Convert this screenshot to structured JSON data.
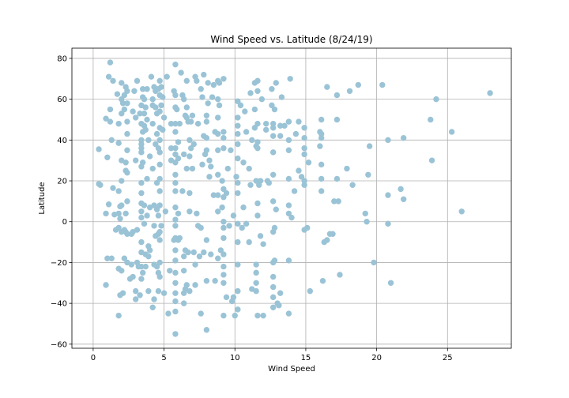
{
  "chart_data": {
    "type": "scatter",
    "title": "Wind Speed vs. Latitude (8/24/19)",
    "xlabel": "Wind Speed",
    "ylabel": "Latitude",
    "xlim": [
      -1.5,
      29.5
    ],
    "ylim": [
      -62,
      85
    ],
    "xticks": [
      0,
      5,
      10,
      15,
      20,
      25
    ],
    "yticks": [
      -60,
      -40,
      -20,
      0,
      20,
      40,
      60,
      80
    ],
    "grid": true,
    "point_color": "#9ac3d6",
    "points": [
      [
        0.4,
        35.5
      ],
      [
        0.4,
        18.5
      ],
      [
        0.5,
        18
      ],
      [
        0.9,
        50.5
      ],
      [
        0.9,
        4
      ],
      [
        0.9,
        -31
      ],
      [
        1,
        -18
      ],
      [
        1,
        31.5
      ],
      [
        1.1,
        71
      ],
      [
        1.1,
        8.5
      ],
      [
        1.2,
        78
      ],
      [
        1.2,
        55
      ],
      [
        1.2,
        49
      ],
      [
        1.3,
        -18
      ],
      [
        1.3,
        40
      ],
      [
        1.4,
        69
      ],
      [
        1.4,
        16.5
      ],
      [
        1.5,
        3.5
      ],
      [
        1.6,
        -4
      ],
      [
        1.7,
        62.5
      ],
      [
        1.8,
        48
      ],
      [
        1.8,
        38.5
      ],
      [
        1.8,
        15
      ],
      [
        1.8,
        4
      ],
      [
        1.8,
        -3
      ],
      [
        1.8,
        -23
      ],
      [
        1.8,
        -46
      ],
      [
        1.9,
        7.5
      ],
      [
        1.9,
        1.5
      ],
      [
        1.9,
        -36
      ],
      [
        2,
        68
      ],
      [
        2,
        60
      ],
      [
        2,
        53
      ],
      [
        2,
        30
      ],
      [
        2,
        20
      ],
      [
        2,
        8
      ],
      [
        2,
        -5
      ],
      [
        2,
        -24
      ],
      [
        2.1,
        58
      ],
      [
        2.1,
        -35
      ],
      [
        2.2,
        62
      ],
      [
        2.2,
        55
      ],
      [
        2.2,
        -4
      ],
      [
        2.2,
        -18
      ],
      [
        2.3,
        66
      ],
      [
        2.3,
        29
      ],
      [
        2.3,
        25
      ],
      [
        2.3,
        4
      ],
      [
        2.3,
        -5
      ],
      [
        2.4,
        64
      ],
      [
        2.4,
        58
      ],
      [
        2.4,
        49
      ],
      [
        2.4,
        43
      ],
      [
        2.4,
        35
      ],
      [
        2.4,
        24
      ],
      [
        2.4,
        10
      ],
      [
        2.4,
        -6
      ],
      [
        2.4,
        -20
      ],
      [
        2.6,
        -28
      ],
      [
        2.7,
        -6
      ],
      [
        2.7,
        -21
      ],
      [
        2.8,
        54
      ],
      [
        2.8,
        -27
      ],
      [
        2.8,
        -5
      ],
      [
        2.9,
        64
      ],
      [
        3,
        30
      ],
      [
        3,
        51
      ],
      [
        3,
        -34
      ],
      [
        3,
        -38
      ],
      [
        3.1,
        -4
      ],
      [
        3.1,
        -20
      ],
      [
        3.1,
        69
      ],
      [
        3.2,
        -22
      ],
      [
        3.3,
        53
      ],
      [
        3.3,
        -36
      ],
      [
        3.4,
        57
      ],
      [
        3.4,
        48
      ],
      [
        3.4,
        40
      ],
      [
        3.4,
        38
      ],
      [
        3.4,
        36
      ],
      [
        3.4,
        34
      ],
      [
        3.4,
        27
      ],
      [
        3.4,
        19
      ],
      [
        3.4,
        14
      ],
      [
        3.4,
        9
      ],
      [
        3.4,
        5
      ],
      [
        3.4,
        2
      ],
      [
        3.4,
        -10
      ],
      [
        3.4,
        -15
      ],
      [
        3.4,
        -22
      ],
      [
        3.4,
        -28
      ],
      [
        3.5,
        65
      ],
      [
        3.5,
        61
      ],
      [
        3.5,
        44
      ],
      [
        3.5,
        29
      ],
      [
        3.5,
        -25
      ],
      [
        3.6,
        60
      ],
      [
        3.6,
        53
      ],
      [
        3.6,
        47
      ],
      [
        3.6,
        8
      ],
      [
        3.6,
        -1
      ],
      [
        3.7,
        56
      ],
      [
        3.7,
        45
      ],
      [
        3.7,
        -16
      ],
      [
        3.7,
        -22
      ],
      [
        3.8,
        65
      ],
      [
        3.8,
        50
      ],
      [
        3.8,
        21
      ],
      [
        3.8,
        3
      ],
      [
        3.9,
        40
      ],
      [
        3.9,
        -17
      ],
      [
        3.9,
        -12
      ],
      [
        3.9,
        -34
      ],
      [
        4,
        32
      ],
      [
        4,
        7
      ],
      [
        4,
        -14
      ],
      [
        4.1,
        71
      ],
      [
        4.2,
        60
      ],
      [
        4.2,
        57
      ],
      [
        4.2,
        48
      ],
      [
        4.2,
        26
      ],
      [
        4.2,
        -42
      ],
      [
        4.3,
        66
      ],
      [
        4.3,
        -38
      ],
      [
        4.3,
        -21
      ],
      [
        4.3,
        -2
      ],
      [
        4.3,
        8
      ],
      [
        4.4,
        64
      ],
      [
        4.4,
        56
      ],
      [
        4.4,
        38
      ],
      [
        4.4,
        -7
      ],
      [
        4.5,
        53
      ],
      [
        4.5,
        43
      ],
      [
        4.5,
        19
      ],
      [
        4.5,
        6
      ],
      [
        4.5,
        -22
      ],
      [
        4.6,
        65
      ],
      [
        4.6,
        36
      ],
      [
        4.6,
        3
      ],
      [
        4.6,
        -6
      ],
      [
        4.6,
        -25
      ],
      [
        4.6,
        -34
      ],
      [
        4.7,
        69
      ],
      [
        4.7,
        62
      ],
      [
        4.7,
        54
      ],
      [
        4.7,
        46
      ],
      [
        4.7,
        40
      ],
      [
        4.7,
        34
      ],
      [
        4.7,
        28
      ],
      [
        4.7,
        21
      ],
      [
        4.7,
        15
      ],
      [
        4.7,
        8
      ],
      [
        4.7,
        -5
      ],
      [
        4.7,
        -9
      ],
      [
        4.7,
        -20
      ],
      [
        4.7,
        -27
      ],
      [
        4.8,
        66
      ],
      [
        4.8,
        57
      ],
      [
        4.8,
        -2
      ],
      [
        4.9,
        45
      ],
      [
        4.9,
        61
      ],
      [
        5,
        51
      ],
      [
        5,
        -35
      ],
      [
        5.1,
        5
      ],
      [
        5.2,
        71
      ],
      [
        5.3,
        -45
      ],
      [
        5.4,
        -24
      ],
      [
        5.5,
        36
      ],
      [
        5.5,
        48
      ],
      [
        5.5,
        30
      ],
      [
        5.7,
        64
      ],
      [
        5.7,
        -9
      ],
      [
        5.8,
        77
      ],
      [
        5.8,
        62
      ],
      [
        5.8,
        56
      ],
      [
        5.8,
        48
      ],
      [
        5.8,
        44
      ],
      [
        5.8,
        36
      ],
      [
        5.8,
        33
      ],
      [
        5.8,
        29
      ],
      [
        5.8,
        23
      ],
      [
        5.8,
        19
      ],
      [
        5.8,
        15
      ],
      [
        5.8,
        7
      ],
      [
        5.8,
        1
      ],
      [
        5.8,
        -2
      ],
      [
        5.8,
        -8
      ],
      [
        5.8,
        -14
      ],
      [
        5.8,
        -19
      ],
      [
        5.8,
        -25
      ],
      [
        5.8,
        -30
      ],
      [
        5.8,
        -35
      ],
      [
        5.8,
        -39
      ],
      [
        5.8,
        -44
      ],
      [
        5.8,
        -55
      ],
      [
        5.9,
        55
      ],
      [
        6,
        39
      ],
      [
        6,
        31
      ],
      [
        6,
        4
      ],
      [
        6,
        -9
      ],
      [
        6.1,
        48
      ],
      [
        6.1,
        -8
      ],
      [
        6.2,
        73
      ],
      [
        6.3,
        62
      ],
      [
        6.3,
        15
      ],
      [
        6.4,
        60
      ],
      [
        6.4,
        33
      ],
      [
        6.4,
        -17
      ],
      [
        6.4,
        -24
      ],
      [
        6.4,
        -35
      ],
      [
        6.4,
        -40
      ],
      [
        6.5,
        52
      ],
      [
        6.5,
        -14
      ],
      [
        6.5,
        -33
      ],
      [
        6.6,
        69
      ],
      [
        6.6,
        56
      ],
      [
        6.6,
        51
      ],
      [
        6.6,
        26
      ],
      [
        6.6,
        -31
      ],
      [
        6.7,
        49
      ],
      [
        6.7,
        -15
      ],
      [
        6.8,
        40
      ],
      [
        6.8,
        32
      ],
      [
        6.8,
        14
      ],
      [
        6.8,
        5
      ],
      [
        6.8,
        -34
      ],
      [
        6.9,
        49
      ],
      [
        6.9,
        36
      ],
      [
        7,
        52
      ],
      [
        7,
        26
      ],
      [
        7.1,
        38
      ],
      [
        7.1,
        -15
      ],
      [
        7.2,
        71
      ],
      [
        7.2,
        -21
      ],
      [
        7.2,
        -31
      ],
      [
        7.3,
        69
      ],
      [
        7.3,
        4
      ],
      [
        7.4,
        48
      ],
      [
        7.4,
        -2
      ],
      [
        7.5,
        -17
      ],
      [
        7.6,
        65
      ],
      [
        7.6,
        -3
      ],
      [
        7.6,
        -45
      ],
      [
        7.7,
        61
      ],
      [
        7.7,
        28
      ],
      [
        7.8,
        72
      ],
      [
        7.8,
        42
      ],
      [
        7.8,
        -15
      ],
      [
        7.9,
        33
      ],
      [
        8,
        52
      ],
      [
        8,
        49
      ],
      [
        8,
        41
      ],
      [
        8,
        35
      ],
      [
        8,
        -9
      ],
      [
        8,
        -29
      ],
      [
        8,
        -53
      ],
      [
        8.1,
        68
      ],
      [
        8.1,
        58
      ],
      [
        8.2,
        30
      ],
      [
        8.2,
        22
      ],
      [
        8.3,
        27
      ],
      [
        8.3,
        -16
      ],
      [
        8.4,
        61
      ],
      [
        8.5,
        67
      ],
      [
        8.5,
        13
      ],
      [
        8.6,
        44
      ],
      [
        8.6,
        -29
      ],
      [
        8.8,
        69
      ],
      [
        8.8,
        60
      ],
      [
        8.8,
        51
      ],
      [
        8.8,
        43
      ],
      [
        8.8,
        35
      ],
      [
        8.8,
        23
      ],
      [
        8.8,
        13
      ],
      [
        8.8,
        5
      ],
      [
        8.8,
        -18
      ],
      [
        8.9,
        68
      ],
      [
        8.9,
        57
      ],
      [
        9,
        -14
      ],
      [
        9.1,
        20
      ],
      [
        9.1,
        7
      ],
      [
        9.2,
        70
      ],
      [
        9.2,
        44
      ],
      [
        9.2,
        41
      ],
      [
        9.2,
        36
      ],
      [
        9.2,
        16
      ],
      [
        9.2,
        12
      ],
      [
        9.2,
        0
      ],
      [
        9.2,
        -3
      ],
      [
        9.2,
        -8
      ],
      [
        9.2,
        -16
      ],
      [
        9.2,
        -22
      ],
      [
        9.2,
        -26
      ],
      [
        9.2,
        -30
      ],
      [
        9.2,
        -46
      ],
      [
        9.4,
        14
      ],
      [
        9.4,
        -37
      ],
      [
        9.5,
        26
      ],
      [
        9.6,
        -2
      ],
      [
        9.7,
        35
      ],
      [
        9.8,
        -39
      ],
      [
        9.9,
        3
      ],
      [
        9.9,
        -37
      ],
      [
        10,
        -46
      ],
      [
        10.1,
        22
      ],
      [
        10.2,
        59
      ],
      [
        10.2,
        51
      ],
      [
        10.2,
        47
      ],
      [
        10.2,
        43
      ],
      [
        10.2,
        38
      ],
      [
        10.2,
        31
      ],
      [
        10.2,
        19
      ],
      [
        10.2,
        14
      ],
      [
        10.2,
        -1
      ],
      [
        10.2,
        -10
      ],
      [
        10.2,
        -21
      ],
      [
        10.2,
        -34
      ],
      [
        10.2,
        -43
      ],
      [
        10.4,
        57
      ],
      [
        10.5,
        -3
      ],
      [
        10.6,
        29
      ],
      [
        10.6,
        7
      ],
      [
        10.7,
        54
      ],
      [
        10.8,
        44
      ],
      [
        10.8,
        -1
      ],
      [
        11,
        26
      ],
      [
        11,
        -10
      ],
      [
        11.1,
        18
      ],
      [
        11.1,
        63
      ],
      [
        11.2,
        40
      ],
      [
        11.2,
        -33
      ],
      [
        11.4,
        55
      ],
      [
        11.4,
        68
      ],
      [
        11.4,
        46
      ],
      [
        11.5,
        20
      ],
      [
        11.5,
        37
      ],
      [
        11.5,
        -21
      ],
      [
        11.5,
        -25
      ],
      [
        11.5,
        -30
      ],
      [
        11.5,
        -34
      ],
      [
        11.6,
        69
      ],
      [
        11.6,
        64
      ],
      [
        11.6,
        48
      ],
      [
        11.6,
        39
      ],
      [
        11.6,
        36
      ],
      [
        11.6,
        9
      ],
      [
        11.6,
        3
      ],
      [
        11.6,
        -46
      ],
      [
        11.7,
        18
      ],
      [
        11.8,
        20
      ],
      [
        11.8,
        -7
      ],
      [
        11.9,
        60
      ],
      [
        12,
        -46
      ],
      [
        12,
        -11
      ],
      [
        12.2,
        45
      ],
      [
        12.2,
        48
      ],
      [
        12.3,
        20
      ],
      [
        12.4,
        19
      ],
      [
        12.6,
        65
      ],
      [
        12.6,
        57
      ],
      [
        12.7,
        48
      ],
      [
        12.7,
        46
      ],
      [
        12.7,
        42
      ],
      [
        12.7,
        34
      ],
      [
        12.7,
        23
      ],
      [
        12.7,
        10
      ],
      [
        12.7,
        -5
      ],
      [
        12.7,
        -20
      ],
      [
        12.7,
        -27
      ],
      [
        12.7,
        -32
      ],
      [
        12.7,
        -37
      ],
      [
        12.7,
        -42
      ],
      [
        12.8,
        55
      ],
      [
        12.8,
        -3
      ],
      [
        12.8,
        -19
      ],
      [
        12.9,
        68
      ],
      [
        12.9,
        6
      ],
      [
        13,
        -40
      ],
      [
        13.1,
        -41
      ],
      [
        13.2,
        47
      ],
      [
        13.2,
        42
      ],
      [
        13.2,
        -35
      ],
      [
        13.3,
        61
      ],
      [
        13.5,
        47
      ],
      [
        13.8,
        49
      ],
      [
        13.8,
        49
      ],
      [
        13.8,
        40
      ],
      [
        13.8,
        35
      ],
      [
        13.8,
        21
      ],
      [
        13.8,
        8
      ],
      [
        13.8,
        4
      ],
      [
        13.8,
        -19
      ],
      [
        13.8,
        -45
      ],
      [
        13.9,
        70
      ],
      [
        14,
        2
      ],
      [
        14.2,
        15
      ],
      [
        14.3,
        43
      ],
      [
        14.5,
        25
      ],
      [
        14.5,
        49
      ],
      [
        14.7,
        22
      ],
      [
        14.9,
        41
      ],
      [
        14.9,
        46
      ],
      [
        14.9,
        36
      ],
      [
        14.9,
        33
      ],
      [
        14.9,
        20
      ],
      [
        14.9,
        18
      ],
      [
        14.9,
        -4
      ],
      [
        15.1,
        -3
      ],
      [
        15.2,
        29
      ],
      [
        15.3,
        -34
      ],
      [
        16,
        44
      ],
      [
        16,
        37
      ],
      [
        16.1,
        50
      ],
      [
        16.1,
        43
      ],
      [
        16.1,
        41
      ],
      [
        16.1,
        28
      ],
      [
        16.1,
        21
      ],
      [
        16.1,
        15
      ],
      [
        16.2,
        -29
      ],
      [
        16.3,
        -10
      ],
      [
        16.5,
        66
      ],
      [
        16.5,
        -9
      ],
      [
        16.7,
        -6
      ],
      [
        16.9,
        -6
      ],
      [
        17,
        10
      ],
      [
        17.2,
        62
      ],
      [
        17.2,
        50
      ],
      [
        17.2,
        21
      ],
      [
        17.3,
        10
      ],
      [
        17.4,
        -26
      ],
      [
        17.9,
        26
      ],
      [
        18.1,
        64
      ],
      [
        18.3,
        18
      ],
      [
        18.7,
        67
      ],
      [
        19.2,
        4
      ],
      [
        19.3,
        0
      ],
      [
        19.4,
        23
      ],
      [
        19.5,
        37
      ],
      [
        19.8,
        -20
      ],
      [
        20.4,
        67
      ],
      [
        20.8,
        40
      ],
      [
        20.8,
        13
      ],
      [
        20.8,
        -1
      ],
      [
        21,
        -30
      ],
      [
        21.7,
        16
      ],
      [
        21.9,
        11
      ],
      [
        21.9,
        41
      ],
      [
        23.8,
        50
      ],
      [
        23.9,
        30
      ],
      [
        24.2,
        60
      ],
      [
        25.3,
        44
      ],
      [
        26,
        5
      ],
      [
        28,
        63
      ]
    ]
  }
}
